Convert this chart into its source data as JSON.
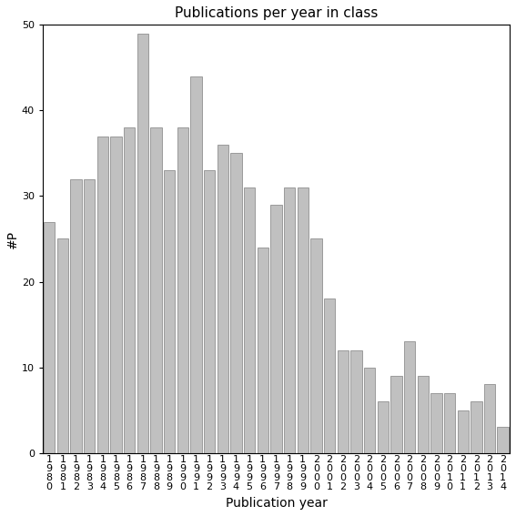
{
  "title": "Publications per year in class",
  "xlabel": "Publication year",
  "ylabel": "#P",
  "years": [
    1980,
    1981,
    1982,
    1983,
    1984,
    1985,
    1986,
    1987,
    1988,
    1989,
    1990,
    1991,
    1992,
    1993,
    1994,
    1995,
    1996,
    1997,
    1998,
    1999,
    2000,
    2001,
    2002,
    2003,
    2004,
    2005,
    2006,
    2007,
    2008,
    2009,
    2010,
    2011,
    2012,
    2013,
    2014
  ],
  "values": [
    27,
    25,
    32,
    32,
    37,
    37,
    38,
    49,
    38,
    33,
    38,
    44,
    33,
    36,
    35,
    31,
    24,
    29,
    31,
    31,
    25,
    18,
    12,
    12,
    10,
    6,
    9,
    13,
    9,
    7,
    7,
    5,
    6,
    8,
    3
  ],
  "bar_color": "#c0c0c0",
  "bar_edge_color": "#808080",
  "ylim": [
    0,
    50
  ],
  "yticks": [
    0,
    10,
    20,
    30,
    40,
    50
  ],
  "background_color": "#ffffff",
  "title_fontsize": 11,
  "label_fontsize": 10,
  "tick_fontsize": 8
}
